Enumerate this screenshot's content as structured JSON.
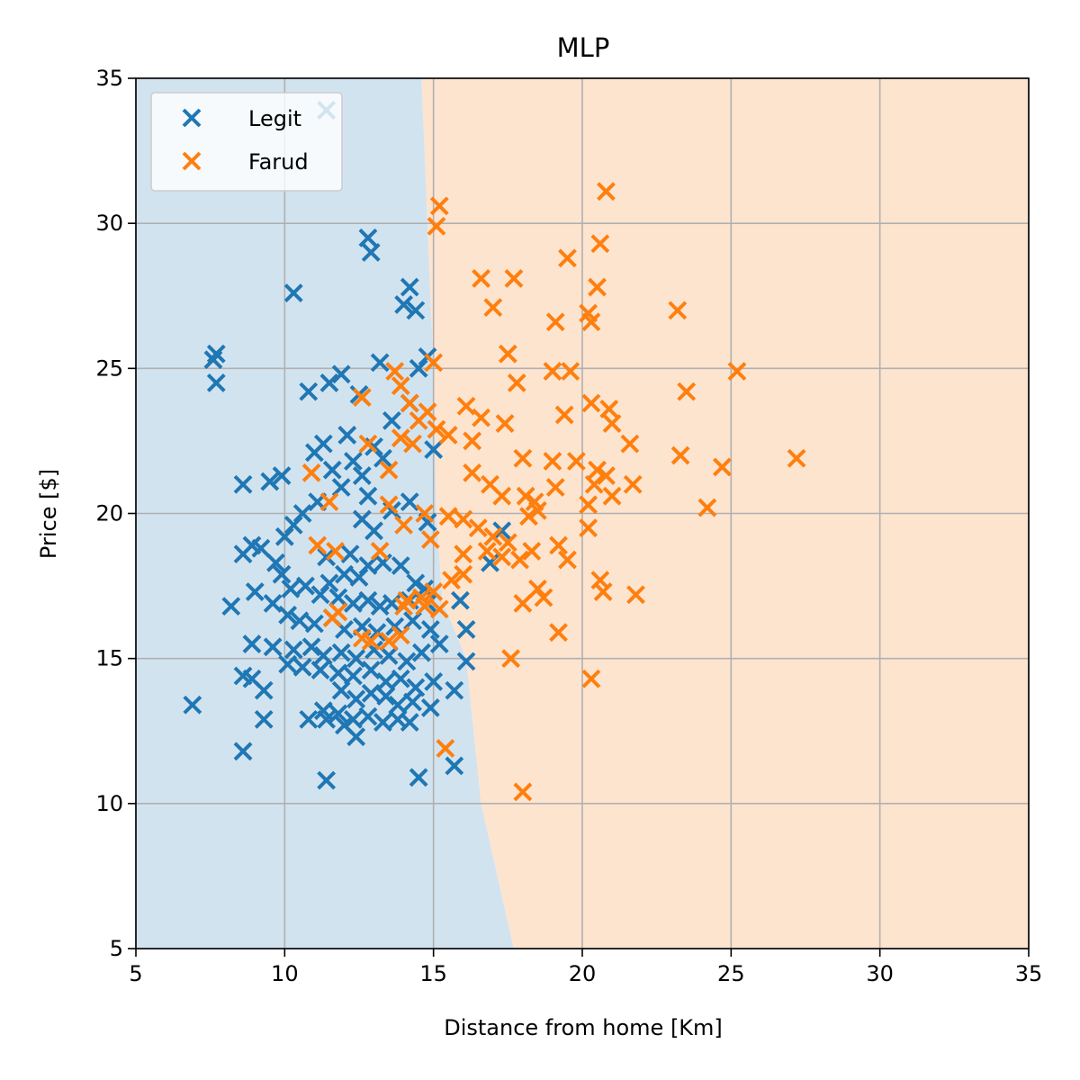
{
  "chart_data": {
    "type": "scatter",
    "title": "MLP",
    "xlabel": "Distance from home [Km]",
    "ylabel": "Price [$]",
    "xlim": [
      5,
      35
    ],
    "ylim": [
      5,
      35
    ],
    "xticks": [
      "5",
      "10",
      "15",
      "20",
      "25",
      "30",
      "35"
    ],
    "yticks": [
      "5",
      "10",
      "15",
      "20",
      "25",
      "30",
      "35"
    ],
    "grid": true,
    "legend_position": "top-left",
    "marker": "x",
    "decision_regions": [
      {
        "class": "Legit",
        "color": "#d2e3f0",
        "boundary": [
          [
            14.6,
            35
          ],
          [
            15.0,
            25
          ],
          [
            15.1,
            20
          ],
          [
            15.3,
            17
          ],
          [
            16.1,
            15
          ],
          [
            16.6,
            10
          ],
          [
            17.7,
            5
          ]
        ]
      },
      {
        "class": "Farud",
        "color": "#fde4cf"
      }
    ],
    "series": [
      {
        "name": "Legit",
        "color": "#1f77b4",
        "points": [
          [
            11.4,
            33.9
          ],
          [
            12.8,
            29.5
          ],
          [
            12.9,
            29.0
          ],
          [
            10.3,
            27.6
          ],
          [
            14.2,
            27.8
          ],
          [
            14.0,
            27.2
          ],
          [
            14.4,
            27.0
          ],
          [
            7.7,
            25.5
          ],
          [
            7.6,
            25.3
          ],
          [
            7.7,
            24.5
          ],
          [
            14.8,
            25.4
          ],
          [
            14.5,
            25.0
          ],
          [
            13.2,
            25.2
          ],
          [
            11.9,
            24.8
          ],
          [
            11.5,
            24.5
          ],
          [
            10.8,
            24.2
          ],
          [
            12.5,
            24.1
          ],
          [
            14.2,
            23.8
          ],
          [
            13.6,
            23.2
          ],
          [
            12.1,
            22.7
          ],
          [
            11.3,
            22.4
          ],
          [
            11.0,
            22.1
          ],
          [
            13.0,
            22.3
          ],
          [
            15.0,
            22.2
          ],
          [
            8.6,
            21.0
          ],
          [
            9.5,
            21.1
          ],
          [
            9.9,
            21.3
          ],
          [
            11.6,
            21.5
          ],
          [
            12.3,
            21.8
          ],
          [
            12.6,
            21.3
          ],
          [
            13.3,
            21.9
          ],
          [
            11.9,
            20.9
          ],
          [
            12.8,
            20.6
          ],
          [
            11.1,
            20.4
          ],
          [
            10.6,
            20.0
          ],
          [
            10.3,
            19.6
          ],
          [
            10.0,
            19.2
          ],
          [
            13.6,
            20.1
          ],
          [
            14.2,
            20.4
          ],
          [
            12.6,
            19.8
          ],
          [
            13.0,
            19.4
          ],
          [
            14.8,
            19.7
          ],
          [
            8.6,
            18.6
          ],
          [
            9.2,
            18.8
          ],
          [
            8.9,
            18.9
          ],
          [
            9.7,
            18.3
          ],
          [
            11.4,
            18.5
          ],
          [
            12.2,
            18.6
          ],
          [
            12.8,
            18.2
          ],
          [
            12.0,
            17.9
          ],
          [
            11.5,
            17.6
          ],
          [
            12.5,
            17.8
          ],
          [
            13.3,
            18.3
          ],
          [
            13.9,
            18.2
          ],
          [
            14.4,
            17.6
          ],
          [
            14.7,
            17.4
          ],
          [
            9.9,
            17.9
          ],
          [
            10.2,
            17.4
          ],
          [
            10.7,
            17.5
          ],
          [
            11.2,
            17.2
          ],
          [
            11.8,
            17.1
          ],
          [
            12.3,
            16.9
          ],
          [
            12.8,
            17.0
          ],
          [
            13.2,
            16.8
          ],
          [
            13.6,
            16.9
          ],
          [
            14.2,
            17.0
          ],
          [
            14.8,
            16.9
          ],
          [
            8.2,
            16.8
          ],
          [
            9.0,
            17.3
          ],
          [
            9.6,
            16.9
          ],
          [
            10.1,
            16.5
          ],
          [
            10.5,
            16.3
          ],
          [
            11.0,
            16.2
          ],
          [
            11.6,
            16.4
          ],
          [
            12.0,
            16.0
          ],
          [
            12.6,
            16.1
          ],
          [
            13.1,
            15.9
          ],
          [
            13.7,
            16.1
          ],
          [
            14.3,
            16.3
          ],
          [
            14.9,
            16.0
          ],
          [
            15.2,
            15.5
          ],
          [
            8.9,
            15.5
          ],
          [
            9.6,
            15.4
          ],
          [
            10.3,
            15.3
          ],
          [
            10.9,
            15.4
          ],
          [
            11.3,
            15.1
          ],
          [
            11.9,
            15.2
          ],
          [
            12.4,
            15.0
          ],
          [
            13.0,
            15.3
          ],
          [
            13.5,
            15.1
          ],
          [
            14.1,
            14.9
          ],
          [
            14.6,
            15.2
          ],
          [
            10.1,
            14.8
          ],
          [
            10.6,
            14.7
          ],
          [
            11.2,
            14.6
          ],
          [
            11.8,
            14.5
          ],
          [
            12.3,
            14.4
          ],
          [
            12.9,
            14.6
          ],
          [
            13.4,
            14.2
          ],
          [
            13.9,
            14.3
          ],
          [
            14.4,
            14.0
          ],
          [
            15.0,
            14.2
          ],
          [
            16.1,
            14.9
          ],
          [
            15.7,
            13.9
          ],
          [
            8.6,
            14.4
          ],
          [
            8.9,
            14.3
          ],
          [
            9.3,
            13.9
          ],
          [
            11.9,
            13.9
          ],
          [
            12.4,
            13.6
          ],
          [
            12.9,
            13.8
          ],
          [
            13.4,
            13.7
          ],
          [
            13.8,
            13.4
          ],
          [
            14.3,
            13.5
          ],
          [
            14.9,
            13.3
          ],
          [
            11.3,
            13.2
          ],
          [
            11.8,
            13.1
          ],
          [
            12.3,
            12.9
          ],
          [
            12.8,
            13.0
          ],
          [
            13.3,
            12.8
          ],
          [
            13.8,
            12.9
          ],
          [
            14.2,
            12.8
          ],
          [
            6.9,
            13.4
          ],
          [
            9.3,
            12.9
          ],
          [
            10.8,
            12.9
          ],
          [
            11.4,
            12.9
          ],
          [
            12.0,
            12.7
          ],
          [
            12.4,
            12.3
          ],
          [
            8.6,
            11.8
          ],
          [
            11.4,
            10.8
          ],
          [
            14.5,
            10.9
          ],
          [
            15.7,
            11.3
          ],
          [
            15.9,
            17.0
          ],
          [
            16.1,
            16.0
          ],
          [
            17.3,
            19.4
          ],
          [
            16.9,
            18.3
          ]
        ]
      },
      {
        "name": "Farud",
        "color": "#ff7f0e",
        "points": [
          [
            15.2,
            30.6
          ],
          [
            15.1,
            29.9
          ],
          [
            20.8,
            31.1
          ],
          [
            20.6,
            29.3
          ],
          [
            19.5,
            28.8
          ],
          [
            16.6,
            28.1
          ],
          [
            17.7,
            28.1
          ],
          [
            17.0,
            27.1
          ],
          [
            20.5,
            27.8
          ],
          [
            20.2,
            26.9
          ],
          [
            20.3,
            26.6
          ],
          [
            19.1,
            26.6
          ],
          [
            23.2,
            27.0
          ],
          [
            17.5,
            25.5
          ],
          [
            15.0,
            25.2
          ],
          [
            19.0,
            24.9
          ],
          [
            19.6,
            24.9
          ],
          [
            25.2,
            24.9
          ],
          [
            13.7,
            24.9
          ],
          [
            13.9,
            24.4
          ],
          [
            12.6,
            24.0
          ],
          [
            23.5,
            24.2
          ],
          [
            14.2,
            23.8
          ],
          [
            14.8,
            23.5
          ],
          [
            14.5,
            23.2
          ],
          [
            16.1,
            23.7
          ],
          [
            17.8,
            24.5
          ],
          [
            20.3,
            23.8
          ],
          [
            20.9,
            23.6
          ],
          [
            19.4,
            23.4
          ],
          [
            21.0,
            23.1
          ],
          [
            17.4,
            23.1
          ],
          [
            16.6,
            23.3
          ],
          [
            13.9,
            22.6
          ],
          [
            14.3,
            22.4
          ],
          [
            12.8,
            22.4
          ],
          [
            15.1,
            22.9
          ],
          [
            15.5,
            22.7
          ],
          [
            16.3,
            22.5
          ],
          [
            18.0,
            21.9
          ],
          [
            19.0,
            21.8
          ],
          [
            19.8,
            21.8
          ],
          [
            20.5,
            21.5
          ],
          [
            20.8,
            21.3
          ],
          [
            21.6,
            22.4
          ],
          [
            23.3,
            22.0
          ],
          [
            24.7,
            21.6
          ],
          [
            27.2,
            21.9
          ],
          [
            10.9,
            21.4
          ],
          [
            13.5,
            21.5
          ],
          [
            16.3,
            21.4
          ],
          [
            16.9,
            21.0
          ],
          [
            17.3,
            20.6
          ],
          [
            18.1,
            20.6
          ],
          [
            18.4,
            20.4
          ],
          [
            19.1,
            20.9
          ],
          [
            20.4,
            21.0
          ],
          [
            21.0,
            20.6
          ],
          [
            21.7,
            21.0
          ],
          [
            24.2,
            20.2
          ],
          [
            11.5,
            20.4
          ],
          [
            13.5,
            20.3
          ],
          [
            14.7,
            20.0
          ],
          [
            15.5,
            19.9
          ],
          [
            16.0,
            19.8
          ],
          [
            16.5,
            19.5
          ],
          [
            17.0,
            19.2
          ],
          [
            17.5,
            19.0
          ],
          [
            18.2,
            19.9
          ],
          [
            18.5,
            20.1
          ],
          [
            20.2,
            20.3
          ],
          [
            20.2,
            19.5
          ],
          [
            11.1,
            18.9
          ],
          [
            11.7,
            18.7
          ],
          [
            13.2,
            18.7
          ],
          [
            14.0,
            19.6
          ],
          [
            14.9,
            19.1
          ],
          [
            16.0,
            18.6
          ],
          [
            16.8,
            18.7
          ],
          [
            17.3,
            18.5
          ],
          [
            17.9,
            18.4
          ],
          [
            18.3,
            18.7
          ],
          [
            19.2,
            18.9
          ],
          [
            19.5,
            18.4
          ],
          [
            16.0,
            17.9
          ],
          [
            15.6,
            17.7
          ],
          [
            14.6,
            17.1
          ],
          [
            14.1,
            17.0
          ],
          [
            14.7,
            16.8
          ],
          [
            18.5,
            17.4
          ],
          [
            18.7,
            17.1
          ],
          [
            20.6,
            17.7
          ],
          [
            20.7,
            17.3
          ],
          [
            21.8,
            17.2
          ],
          [
            11.8,
            16.6
          ],
          [
            11.6,
            16.4
          ],
          [
            18.0,
            16.9
          ],
          [
            12.6,
            15.7
          ],
          [
            12.9,
            15.6
          ],
          [
            13.5,
            15.6
          ],
          [
            13.9,
            15.8
          ],
          [
            19.2,
            15.9
          ],
          [
            17.6,
            15.0
          ],
          [
            20.3,
            14.3
          ],
          [
            15.4,
            11.9
          ],
          [
            18.0,
            10.4
          ],
          [
            15.0,
            17.3
          ],
          [
            15.2,
            16.7
          ],
          [
            14.0,
            16.8
          ]
        ]
      }
    ]
  }
}
